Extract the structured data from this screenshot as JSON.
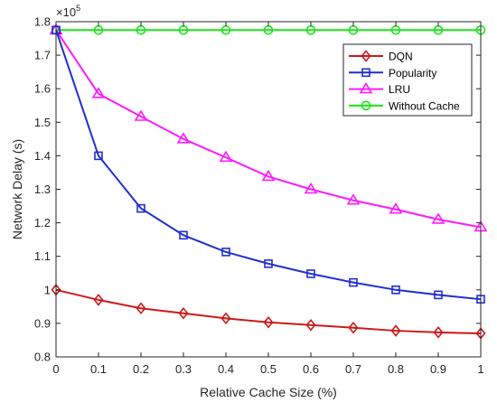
{
  "chart_data": {
    "type": "line",
    "title": "",
    "xlabel": "Relative Cache Size (%)",
    "ylabel": "Network Delay (s)",
    "y_multiplier_base": "×10",
    "y_multiplier_exp": "5",
    "x": [
      0,
      0.1,
      0.2,
      0.3,
      0.4,
      0.5,
      0.6,
      0.7,
      0.8,
      0.9,
      1
    ],
    "xlim": [
      0,
      1
    ],
    "ylim": [
      0.8,
      1.8
    ],
    "x_ticks": [
      "0",
      "0.1",
      "0.2",
      "0.3",
      "0.4",
      "0.5",
      "0.6",
      "0.7",
      "0.8",
      "0.9",
      "1"
    ],
    "y_ticks": [
      "0.8",
      "0.9",
      "1",
      "1.1",
      "1.2",
      "1.3",
      "1.4",
      "1.5",
      "1.6",
      "1.7",
      "1.8"
    ],
    "grid": false,
    "legend_position": "top-right",
    "series": [
      {
        "name": "DQN",
        "color": "#cc1a1a",
        "marker": "diamond",
        "values": [
          1.0,
          0.97,
          0.945,
          0.93,
          0.915,
          0.903,
          0.895,
          0.887,
          0.878,
          0.873,
          0.87
        ]
      },
      {
        "name": "Popularity",
        "color": "#1f2fd1",
        "marker": "square",
        "values": [
          1.775,
          1.4,
          1.243,
          1.163,
          1.113,
          1.078,
          1.048,
          1.022,
          1.0,
          0.985,
          0.972
        ]
      },
      {
        "name": "LRU",
        "color": "#ff19ff",
        "marker": "triangle",
        "values": [
          1.775,
          1.585,
          1.517,
          1.45,
          1.395,
          1.338,
          1.3,
          1.267,
          1.24,
          1.21,
          1.187
        ]
      },
      {
        "name": "Without Cache",
        "color": "#19e619",
        "marker": "circle",
        "values": [
          1.775,
          1.775,
          1.775,
          1.775,
          1.775,
          1.775,
          1.775,
          1.775,
          1.775,
          1.775,
          1.775
        ]
      }
    ]
  }
}
